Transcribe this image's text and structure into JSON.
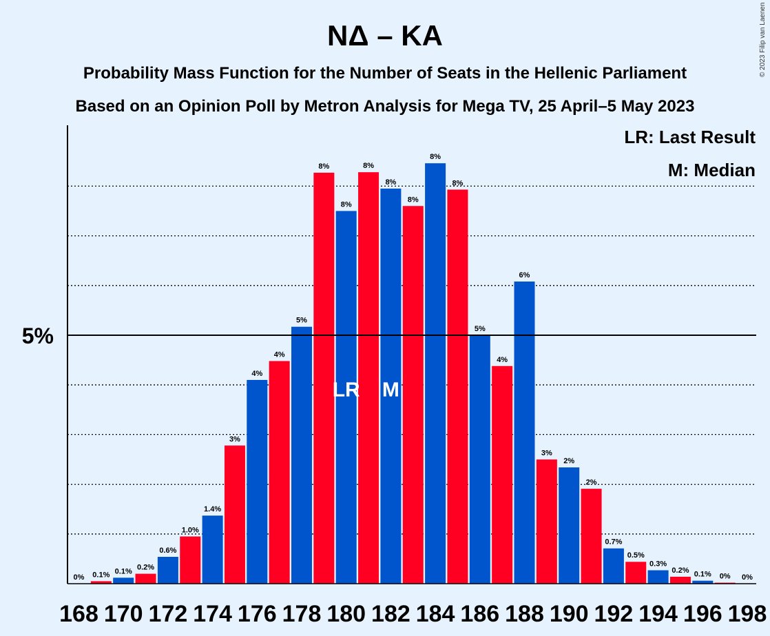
{
  "chart_data": {
    "type": "bar",
    "title": "ΝΔ – ΚΑ",
    "subtitle_1": "Probability Mass Function for the Number of Seats in the Hellenic Parliament",
    "subtitle_2": "Based on an Opinion Poll by Metron Analysis for Mega TV, 25 April–5 May 2023",
    "copyright": "© 2023 Filip van Laenen",
    "legend": {
      "lr": "LR: Last Result",
      "m": "M: Median",
      "placement": "top-right"
    },
    "y_tick_label": "5%",
    "y_tick_value": 5,
    "ylim": [
      0,
      9.2
    ],
    "x_tick_labels": [
      "168",
      "170",
      "172",
      "174",
      "176",
      "178",
      "180",
      "182",
      "184",
      "186",
      "188",
      "190",
      "192",
      "194",
      "196",
      "198"
    ],
    "colors": {
      "blue": "#0055cc",
      "red": "#ff0022",
      "background": "#e6f2fd"
    },
    "bars": [
      {
        "x": 168,
        "value": 0.0,
        "label": "0%",
        "color": "red"
      },
      {
        "x": 169,
        "value": 0.05,
        "label": "0.1%",
        "color": "red"
      },
      {
        "x": 170,
        "value": 0.12,
        "label": "0.1%",
        "color": "blue"
      },
      {
        "x": 171,
        "value": 0.2,
        "label": "0.2%",
        "color": "red"
      },
      {
        "x": 172,
        "value": 0.54,
        "label": "0.6%",
        "color": "blue"
      },
      {
        "x": 173,
        "value": 0.95,
        "label": "1.0%",
        "color": "red"
      },
      {
        "x": 174,
        "value": 1.37,
        "label": "1.4%",
        "color": "blue"
      },
      {
        "x": 175,
        "value": 2.78,
        "label": "3%",
        "color": "red"
      },
      {
        "x": 176,
        "value": 4.1,
        "label": "4%",
        "color": "blue"
      },
      {
        "x": 177,
        "value": 4.48,
        "label": "4%",
        "color": "red"
      },
      {
        "x": 178,
        "value": 5.17,
        "label": "5%",
        "color": "blue"
      },
      {
        "x": 179,
        "value": 8.27,
        "label": "8%",
        "color": "red"
      },
      {
        "x": 180,
        "value": 7.5,
        "label": "8%",
        "color": "blue",
        "marker": "LR"
      },
      {
        "x": 181,
        "value": 8.28,
        "label": "8%",
        "color": "red"
      },
      {
        "x": 182,
        "value": 7.95,
        "label": "8%",
        "color": "blue",
        "marker": "M"
      },
      {
        "x": 183,
        "value": 7.6,
        "label": "8%",
        "color": "red"
      },
      {
        "x": 184,
        "value": 8.46,
        "label": "8%",
        "color": "blue"
      },
      {
        "x": 185,
        "value": 7.93,
        "label": "8%",
        "color": "red"
      },
      {
        "x": 186,
        "value": 5.0,
        "label": "5%",
        "color": "blue"
      },
      {
        "x": 187,
        "value": 4.38,
        "label": "4%",
        "color": "red"
      },
      {
        "x": 188,
        "value": 6.08,
        "label": "6%",
        "color": "blue"
      },
      {
        "x": 189,
        "value": 2.5,
        "label": "3%",
        "color": "red"
      },
      {
        "x": 190,
        "value": 2.34,
        "label": "2%",
        "color": "blue"
      },
      {
        "x": 191,
        "value": 1.91,
        "label": "2%",
        "color": "red"
      },
      {
        "x": 192,
        "value": 0.71,
        "label": "0.7%",
        "color": "blue"
      },
      {
        "x": 193,
        "value": 0.44,
        "label": "0.5%",
        "color": "red"
      },
      {
        "x": 194,
        "value": 0.27,
        "label": "0.3%",
        "color": "blue"
      },
      {
        "x": 195,
        "value": 0.14,
        "label": "0.2%",
        "color": "red"
      },
      {
        "x": 196,
        "value": 0.06,
        "label": "0.1%",
        "color": "blue"
      },
      {
        "x": 197,
        "value": 0.02,
        "label": "0%",
        "color": "red"
      },
      {
        "x": 198,
        "value": 0.0,
        "label": "0%",
        "color": "blue"
      }
    ],
    "gridlines": [
      1,
      2,
      3,
      4,
      6,
      7,
      8
    ],
    "grid": true
  }
}
